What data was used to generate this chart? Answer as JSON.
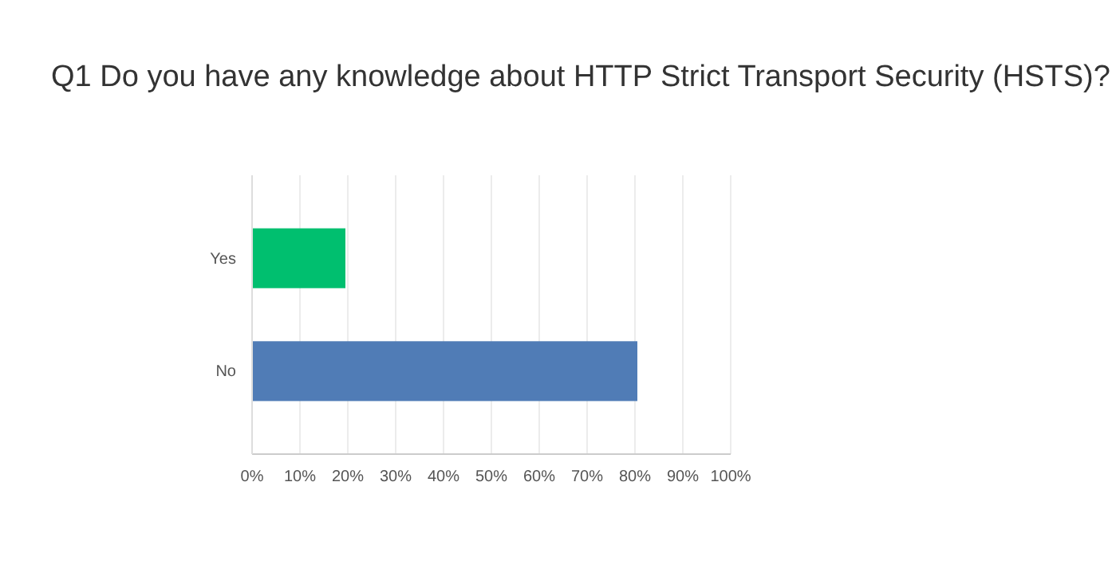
{
  "chart_data": {
    "type": "bar",
    "title": "Q1 Do you have any knowledge about HTTP Strict Transport Security (HSTS)?",
    "orientation": "horizontal",
    "categories": [
      "Yes",
      "No"
    ],
    "values": [
      19.5,
      80.5
    ],
    "colors": [
      "#00bf6f",
      "#507cb6"
    ],
    "xlim": [
      0,
      100
    ],
    "xticks": [
      {
        "value": 0,
        "label": "0%"
      },
      {
        "value": 10,
        "label": "10%"
      },
      {
        "value": 20,
        "label": "20%"
      },
      {
        "value": 30,
        "label": "30%"
      },
      {
        "value": 40,
        "label": "40%"
      },
      {
        "value": 50,
        "label": "50%"
      },
      {
        "value": 60,
        "label": "60%"
      },
      {
        "value": 70,
        "label": "70%"
      },
      {
        "value": 80,
        "label": "80%"
      },
      {
        "value": 90,
        "label": "90%"
      },
      {
        "value": 100,
        "label": "100%"
      }
    ],
    "grid": "x"
  }
}
